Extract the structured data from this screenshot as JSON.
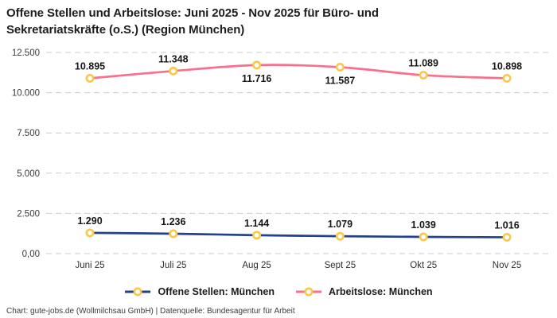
{
  "header": {
    "title_line1": "Offene Stellen und Arbeitslose: Juni 2025 - Nov 2025 für Büro- und",
    "title_line2": "Sekretariatskräfte (o.S.) (Region München)"
  },
  "footer": {
    "credit": "Chart: gute-jobs.de (Wollmilchsau GmbH) | Datenquelle: Bundesagentur für Arbeit"
  },
  "colors": {
    "open_positions_line": "#24418e",
    "unemployed_line": "#f8708c",
    "marker_ring": "#ffc63e",
    "marker_fill": "#ffffff",
    "grid": "#cbcbcb",
    "text": "#1e1e1e"
  },
  "chart_data": {
    "type": "line",
    "title": "Offene Stellen und Arbeitslose: Juni 2025 - Nov 2025 für Büro- und Sekretariatskräfte (o.S.) (Region München)",
    "xlabel": "",
    "ylabel": "",
    "ylim": [
      0,
      12500
    ],
    "grid": "horizontal dashed",
    "legend_position": "bottom",
    "categories": [
      "Juni 25",
      "Juli 25",
      "Aug 25",
      "Sept 25",
      "Okt 25",
      "Nov 25"
    ],
    "y_ticks": [
      {
        "value": 0,
        "label": "0,00"
      },
      {
        "value": 2500,
        "label": "2.500"
      },
      {
        "value": 5000,
        "label": "5.000"
      },
      {
        "value": 7500,
        "label": "7.500"
      },
      {
        "value": 10000,
        "label": "10.000"
      },
      {
        "value": 12500,
        "label": "12.500"
      }
    ],
    "marker": {
      "fill": "#ffffff",
      "stroke": "#ffc63e"
    },
    "series": [
      {
        "name": "Offene Stellen: München",
        "color": "#24418e",
        "values": [
          1290,
          1236,
          1144,
          1079,
          1039,
          1016
        ],
        "labels": [
          "1.290",
          "1.236",
          "1.144",
          "1.079",
          "1.039",
          "1.016"
        ],
        "label_side": [
          "above",
          "above",
          "above",
          "above",
          "above",
          "above"
        ]
      },
      {
        "name": "Arbeitslose: München",
        "color": "#f8708c",
        "values": [
          10895,
          11348,
          11716,
          11587,
          11089,
          10898
        ],
        "labels": [
          "10.895",
          "11.348",
          "11.716",
          "11.587",
          "11.089",
          "10.898"
        ],
        "label_side": [
          "above",
          "above",
          "below",
          "below",
          "above",
          "above"
        ]
      }
    ]
  }
}
